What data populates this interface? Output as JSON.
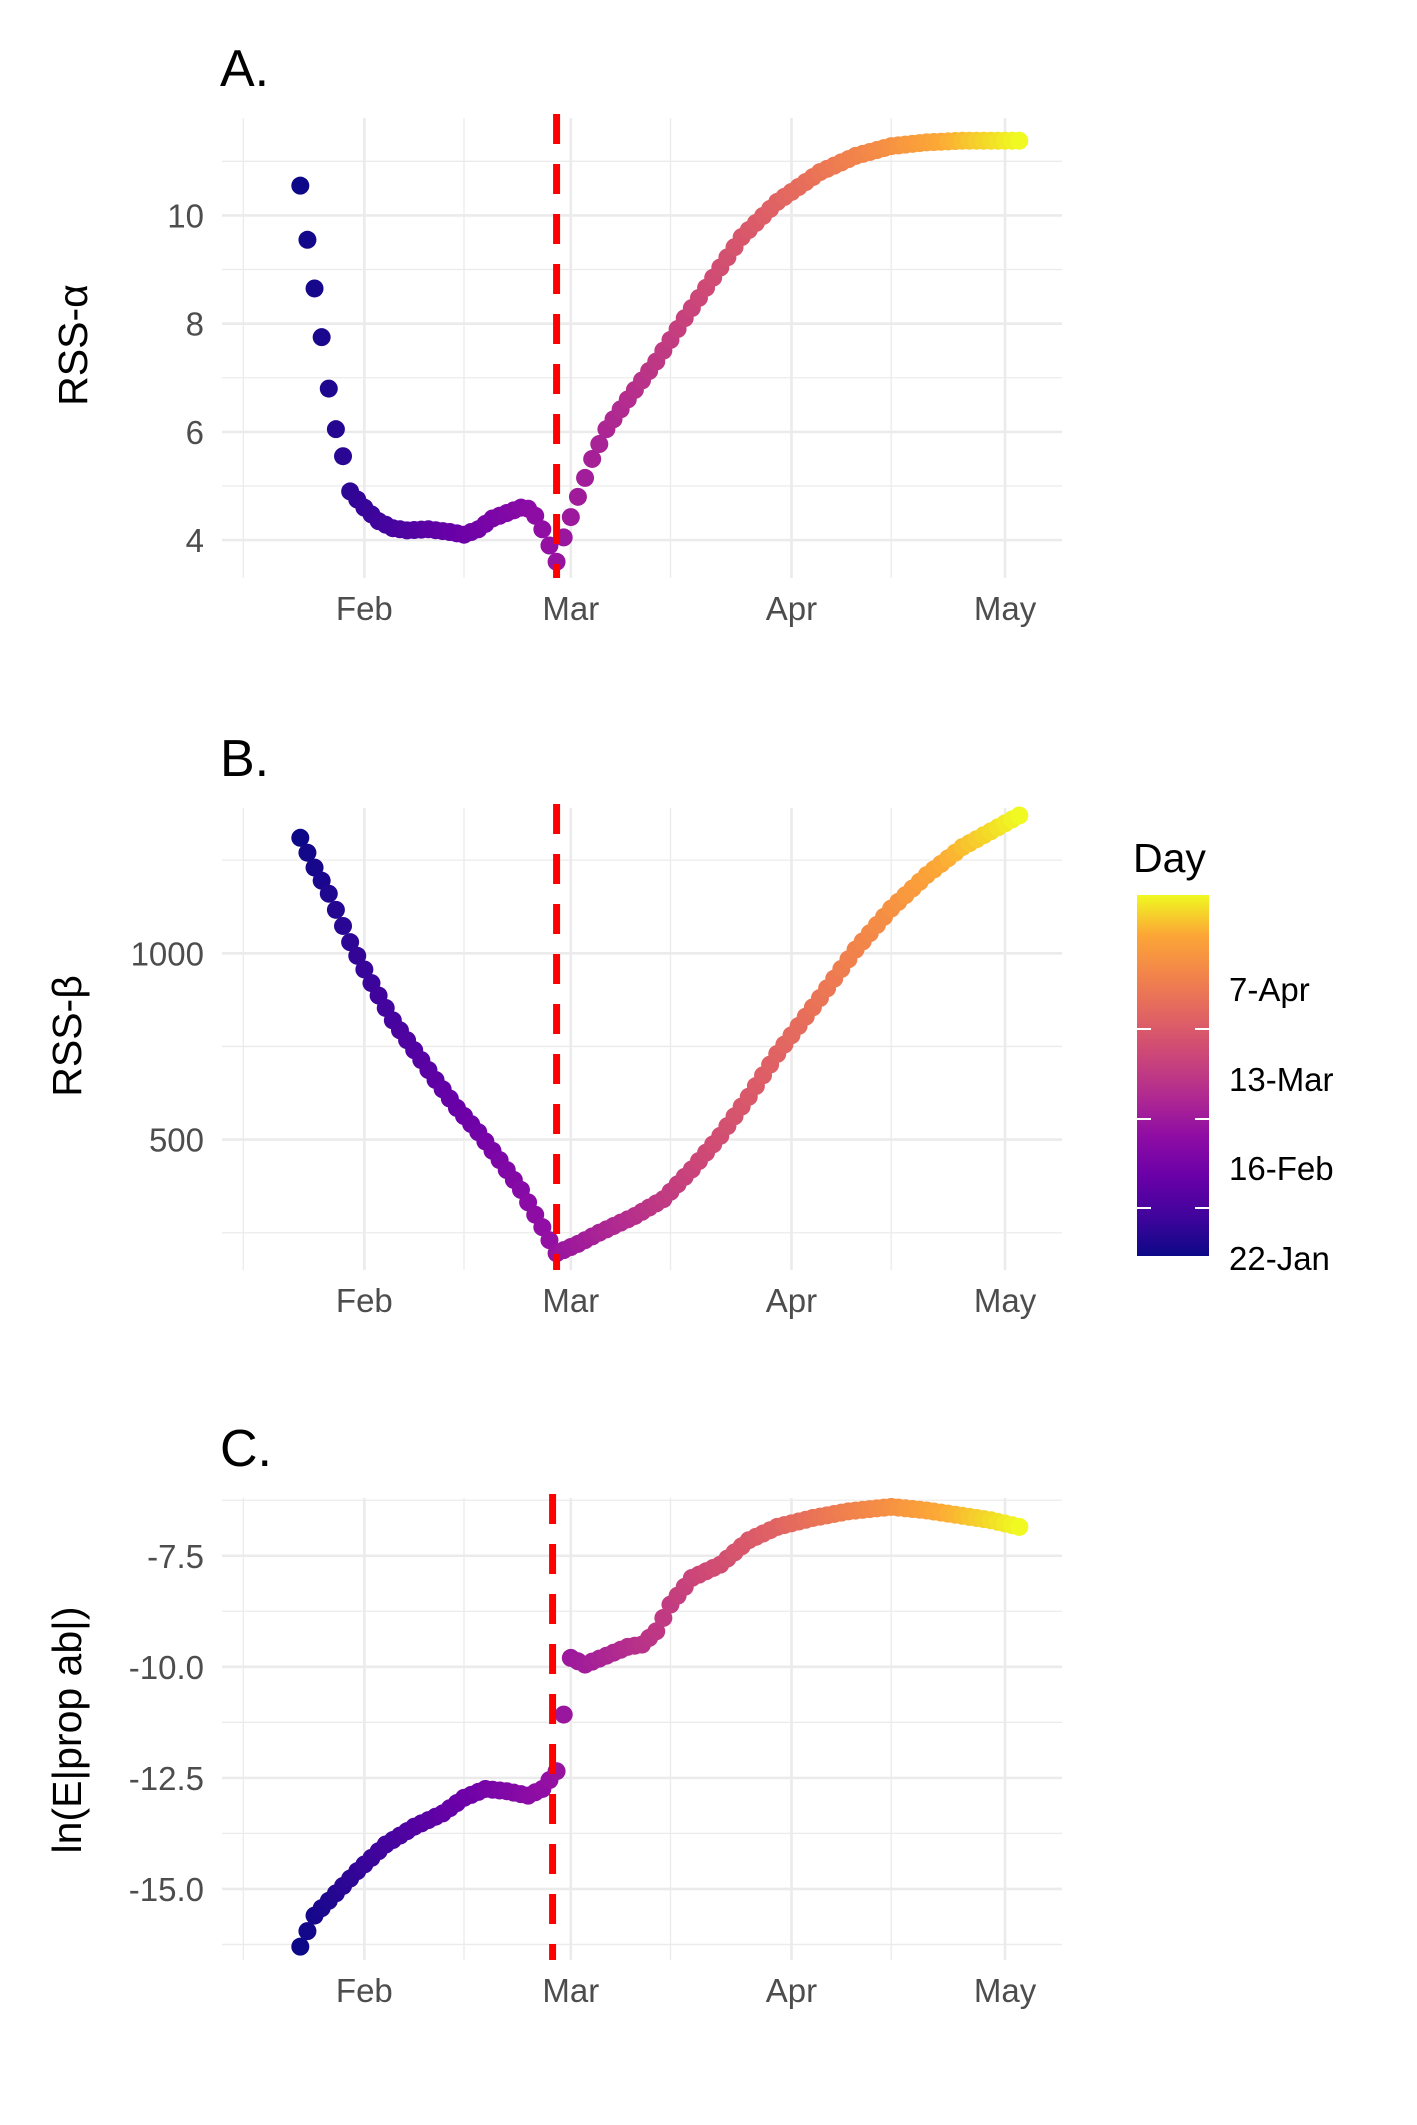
{
  "chart_data": [
    {
      "type": "scatter",
      "panel_label": "A.",
      "ylabel": "RSS-α",
      "xlabel": "",
      "x_ticks": [
        "Feb",
        "Mar",
        "Apr",
        "May"
      ],
      "y_ticks": [
        "4",
        "6",
        "8",
        "10"
      ],
      "ylim": [
        3.3,
        11.8
      ],
      "vline_date": "2020-02-28",
      "grid": true,
      "color_by": "Day",
      "anchors": [
        [
          "2020-01-23",
          10.55
        ],
        [
          "2020-01-24",
          9.55
        ],
        [
          "2020-01-25",
          8.65
        ],
        [
          "2020-01-26",
          7.75
        ],
        [
          "2020-01-27",
          6.8
        ],
        [
          "2020-01-28",
          6.05
        ],
        [
          "2020-01-29",
          5.55
        ],
        [
          "2020-01-30",
          4.9
        ],
        [
          "2020-02-01",
          4.6
        ],
        [
          "2020-02-03",
          4.35
        ],
        [
          "2020-02-05",
          4.22
        ],
        [
          "2020-02-07",
          4.18
        ],
        [
          "2020-02-10",
          4.2
        ],
        [
          "2020-02-13",
          4.15
        ],
        [
          "2020-02-15",
          4.1
        ],
        [
          "2020-02-17",
          4.2
        ],
        [
          "2020-02-19",
          4.4
        ],
        [
          "2020-02-21",
          4.5
        ],
        [
          "2020-02-23",
          4.6
        ],
        [
          "2020-02-24",
          4.58
        ],
        [
          "2020-02-25",
          4.45
        ],
        [
          "2020-02-26",
          4.2
        ],
        [
          "2020-02-27",
          3.9
        ],
        [
          "2020-02-28",
          3.6
        ],
        [
          "2020-02-29",
          4.05
        ],
        [
          "2020-03-02",
          4.8
        ],
        [
          "2020-03-04",
          5.5
        ],
        [
          "2020-03-06",
          6.05
        ],
        [
          "2020-03-09",
          6.6
        ],
        [
          "2020-03-13",
          7.3
        ],
        [
          "2020-03-17",
          8.1
        ],
        [
          "2020-03-21",
          8.85
        ],
        [
          "2020-03-25",
          9.6
        ],
        [
          "2020-03-30",
          10.25
        ],
        [
          "2020-04-05",
          10.8
        ],
        [
          "2020-04-10",
          11.1
        ],
        [
          "2020-04-15",
          11.28
        ],
        [
          "2020-04-20",
          11.35
        ],
        [
          "2020-04-25",
          11.38
        ],
        [
          "2020-05-03",
          11.38
        ]
      ]
    },
    {
      "type": "scatter",
      "panel_label": "B.",
      "ylabel": "RSS-β",
      "xlabel": "",
      "x_ticks": [
        "Feb",
        "Mar",
        "Apr",
        "May"
      ],
      "y_ticks": [
        "500",
        "1000"
      ],
      "ylim": [
        150,
        1390
      ],
      "vline_date": "2020-02-28",
      "grid": true,
      "color_by": "Day",
      "anchors": [
        [
          "2020-01-23",
          1310
        ],
        [
          "2020-01-25",
          1230
        ],
        [
          "2020-01-27",
          1160
        ],
        [
          "2020-01-30",
          1030
        ],
        [
          "2020-02-02",
          920
        ],
        [
          "2020-02-05",
          820
        ],
        [
          "2020-02-08",
          740
        ],
        [
          "2020-02-11",
          660
        ],
        [
          "2020-02-14",
          585
        ],
        [
          "2020-02-17",
          520
        ],
        [
          "2020-02-20",
          445
        ],
        [
          "2020-02-23",
          365
        ],
        [
          "2020-02-26",
          265
        ],
        [
          "2020-02-28",
          195
        ],
        [
          "2020-03-02",
          220
        ],
        [
          "2020-03-05",
          250
        ],
        [
          "2020-03-10",
          295
        ],
        [
          "2020-03-14",
          340
        ],
        [
          "2020-03-18",
          420
        ],
        [
          "2020-03-22",
          510
        ],
        [
          "2020-03-26",
          615
        ],
        [
          "2020-03-30",
          730
        ],
        [
          "2020-04-05",
          880
        ],
        [
          "2020-04-10",
          1010
        ],
        [
          "2020-04-15",
          1120
        ],
        [
          "2020-04-20",
          1210
        ],
        [
          "2020-04-25",
          1285
        ],
        [
          "2020-05-03",
          1370
        ]
      ]
    },
    {
      "type": "scatter",
      "panel_label": "C.",
      "ylabel": "ln(E|prop ab|)",
      "xlabel": "",
      "x_ticks": [
        "Feb",
        "Mar",
        "Apr",
        "May"
      ],
      "y_ticks": [
        "-7.5",
        "-10.0",
        "-12.5",
        "-15.0"
      ],
      "ylim": [
        -16.6,
        -6.2
      ],
      "vline_date": "2020-02-28",
      "grid": true,
      "color_by": "Day",
      "anchors": [
        [
          "2020-01-23",
          -16.3
        ],
        [
          "2020-01-25",
          -15.6
        ],
        [
          "2020-01-28",
          -15.1
        ],
        [
          "2020-01-31",
          -14.6
        ],
        [
          "2020-02-04",
          -14.0
        ],
        [
          "2020-02-08",
          -13.6
        ],
        [
          "2020-02-12",
          -13.3
        ],
        [
          "2020-02-15",
          -12.95
        ],
        [
          "2020-02-18",
          -12.75
        ],
        [
          "2020-02-21",
          -12.8
        ],
        [
          "2020-02-24",
          -12.9
        ],
        [
          "2020-02-26",
          -12.75
        ],
        [
          "2020-02-28",
          -12.35
        ],
        [
          "2020-03-01",
          -9.8
        ],
        [
          "2020-03-03",
          -9.95
        ],
        [
          "2020-03-06",
          -9.75
        ],
        [
          "2020-03-09",
          -9.55
        ],
        [
          "2020-03-11",
          -9.5
        ],
        [
          "2020-03-13",
          -9.2
        ],
        [
          "2020-03-15",
          -8.6
        ],
        [
          "2020-03-18",
          -8.0
        ],
        [
          "2020-03-22",
          -7.7
        ],
        [
          "2020-03-26",
          -7.15
        ],
        [
          "2020-03-30",
          -6.85
        ],
        [
          "2020-04-04",
          -6.65
        ],
        [
          "2020-04-09",
          -6.5
        ],
        [
          "2020-04-15",
          -6.4
        ],
        [
          "2020-04-20",
          -6.48
        ],
        [
          "2020-04-25",
          -6.6
        ],
        [
          "2020-04-29",
          -6.7
        ],
        [
          "2020-05-03",
          -6.85
        ]
      ]
    }
  ],
  "legend": {
    "title": "Day",
    "labels": [
      "7-Apr",
      "13-Mar",
      "16-Feb",
      "22-Jan"
    ]
  }
}
